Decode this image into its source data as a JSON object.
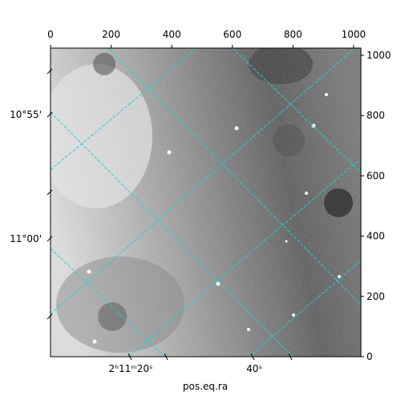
{
  "plot": {
    "xlabel": "pos.eq.ra",
    "top_axis": {
      "lim": [
        0,
        1024
      ],
      "ticks": [
        0,
        200,
        400,
        600,
        800,
        1000
      ]
    },
    "right_axis": {
      "lim": [
        0,
        1024
      ],
      "ticks": [
        0,
        200,
        400,
        600,
        800,
        1000
      ]
    },
    "ra_labels": [
      {
        "value": 20,
        "label": "2ʰ11ᵐ20ˢ"
      },
      {
        "value": 40,
        "label": "40ˢ"
      }
    ],
    "dec_labels": [
      "10°55'",
      "11°00'"
    ]
  }
}
